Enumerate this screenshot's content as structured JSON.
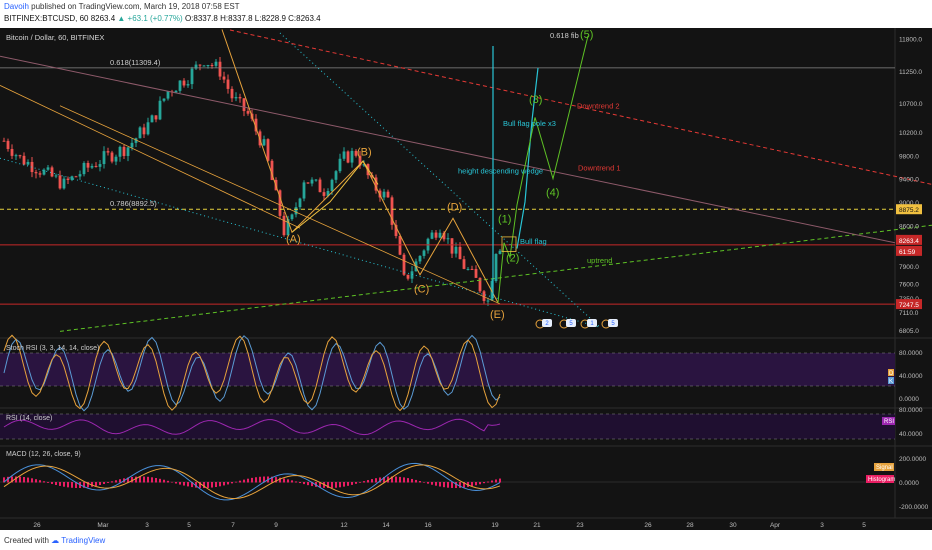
{
  "header": {
    "author": "Davoih",
    "published_text": "published on TradingView.com, March 19, 2018 07:58 EST",
    "symbol_line": "BITFINEX:BTCUSD, 60",
    "last": "8263.4",
    "change": "▲ +63.1 (+0.77%)",
    "ohlc": "O:8337.8 H:8337.8 L:8228.9 C:8263.4"
  },
  "footer": {
    "created_with": "Created with",
    "brand": "TradingView"
  },
  "colors": {
    "background": "#131313",
    "up_candle": "#26a69a",
    "down_candle": "#ef5350",
    "stoch_k": "#5b9bd5",
    "stoch_d": "#e6a23c",
    "rsi": "#9c27b0",
    "macd": "#4a90d9",
    "signal": "#e6a23c",
    "histogram": "#e91e63",
    "wave_orange": "#e6a23c",
    "wave_cyan": "#29c5d6",
    "wave_green": "#5ec225",
    "downtrend": "#e53935"
  },
  "chart_data": {
    "type": "candlestick",
    "title": "Bitcoin / Dollar, 60, BITFINEX",
    "x_tick_labels": [
      "26",
      "Mar",
      "3",
      "5",
      "7",
      "9",
      "12",
      "14",
      "16",
      "19",
      "21",
      "23",
      "26",
      "28",
      "30",
      "Apr",
      "3",
      "5"
    ],
    "price_axis_labels": [
      "11800.0",
      "11250.0",
      "10700.0",
      "10200.0",
      "9800.0",
      "9400.0",
      "9000.0",
      "8600.0",
      "7900.0",
      "7600.0",
      "7350.0",
      "7110.0",
      "6805.0"
    ],
    "ylim": [
      6700,
      11950
    ],
    "price_badges": [
      {
        "label": "8875.2",
        "value": 8875.2
      },
      {
        "label": "8263.4",
        "value": 8263.4
      },
      {
        "label": "61:59",
        "value": 8263.4
      },
      {
        "label": "7247.5",
        "value": 7247.5
      }
    ],
    "price_path": [
      {
        "x": 0,
        "y": 10050
      },
      {
        "x": 4,
        "y": 9750
      },
      {
        "x": 9,
        "y": 9550
      },
      {
        "x": 15,
        "y": 9300
      },
      {
        "x": 20,
        "y": 9550
      },
      {
        "x": 25,
        "y": 9750
      },
      {
        "x": 31,
        "y": 9950
      },
      {
        "x": 37,
        "y": 10400
      },
      {
        "x": 41,
        "y": 10900
      },
      {
        "x": 46,
        "y": 11150
      },
      {
        "x": 50,
        "y": 11450
      },
      {
        "x": 54,
        "y": 11250
      },
      {
        "x": 57,
        "y": 10800
      },
      {
        "x": 61,
        "y": 10500
      },
      {
        "x": 65,
        "y": 9950
      },
      {
        "x": 70,
        "y": 8500
      },
      {
        "x": 72,
        "y": 8700
      },
      {
        "x": 75,
        "y": 9400
      },
      {
        "x": 80,
        "y": 9200
      },
      {
        "x": 85,
        "y": 9750
      },
      {
        "x": 88,
        "y": 9850
      },
      {
        "x": 92,
        "y": 9300
      },
      {
        "x": 96,
        "y": 9050
      },
      {
        "x": 100,
        "y": 7650
      },
      {
        "x": 103,
        "y": 7950
      },
      {
        "x": 106,
        "y": 8350
      },
      {
        "x": 109,
        "y": 8600
      },
      {
        "x": 112,
        "y": 8200
      },
      {
        "x": 115,
        "y": 7900
      },
      {
        "x": 118,
        "y": 7650
      },
      {
        "x": 121,
        "y": 7300
      },
      {
        "x": 123,
        "y": 8200
      },
      {
        "x": 124,
        "y": 8263
      }
    ],
    "annotations": [
      {
        "text": "0.618(11309.4)",
        "kind": "fib"
      },
      {
        "text": "0.786(8892.5)",
        "kind": "fib"
      },
      {
        "text": "0.618 fib",
        "kind": "fib"
      },
      {
        "text": "(A)",
        "kind": "wave"
      },
      {
        "text": "(B)",
        "kind": "wave"
      },
      {
        "text": "(C)",
        "kind": "wave"
      },
      {
        "text": "(D)",
        "kind": "wave"
      },
      {
        "text": "(E)",
        "kind": "wave"
      },
      {
        "text": "(1)",
        "kind": "impulse"
      },
      {
        "text": "(2)",
        "kind": "impulse"
      },
      {
        "text": "(3)",
        "kind": "impulse"
      },
      {
        "text": "(4)",
        "kind": "impulse"
      },
      {
        "text": "(5)",
        "kind": "impulse"
      },
      {
        "text": "Bull flag pole x3",
        "kind": "note"
      },
      {
        "text": "height descending wedge",
        "kind": "note"
      },
      {
        "text": "Bull flag",
        "kind": "note"
      },
      {
        "text": "Downtrend 2",
        "kind": "trend"
      },
      {
        "text": "Downtrend 1",
        "kind": "trend"
      },
      {
        "text": "uptrend",
        "kind": "trend"
      }
    ],
    "event_markers": [
      "2",
      "5",
      "1",
      "5"
    ]
  },
  "panels": {
    "stoch": {
      "label": "Stoch RSI (3, 3, 14, 14, close)",
      "axis": [
        "80.0000",
        "40.0000",
        "0.0000"
      ],
      "badges": [
        "D",
        "K"
      ]
    },
    "rsi": {
      "label": "RSI (14, close)",
      "axis": [
        "80.0000",
        "40.0000"
      ],
      "badge": "RSI"
    },
    "macd": {
      "label": "MACD (12, 26, close, 9)",
      "axis": [
        "200.0000",
        "0.0000",
        "-200.0000"
      ],
      "badges": [
        "Signal",
        "Histogram"
      ]
    }
  }
}
